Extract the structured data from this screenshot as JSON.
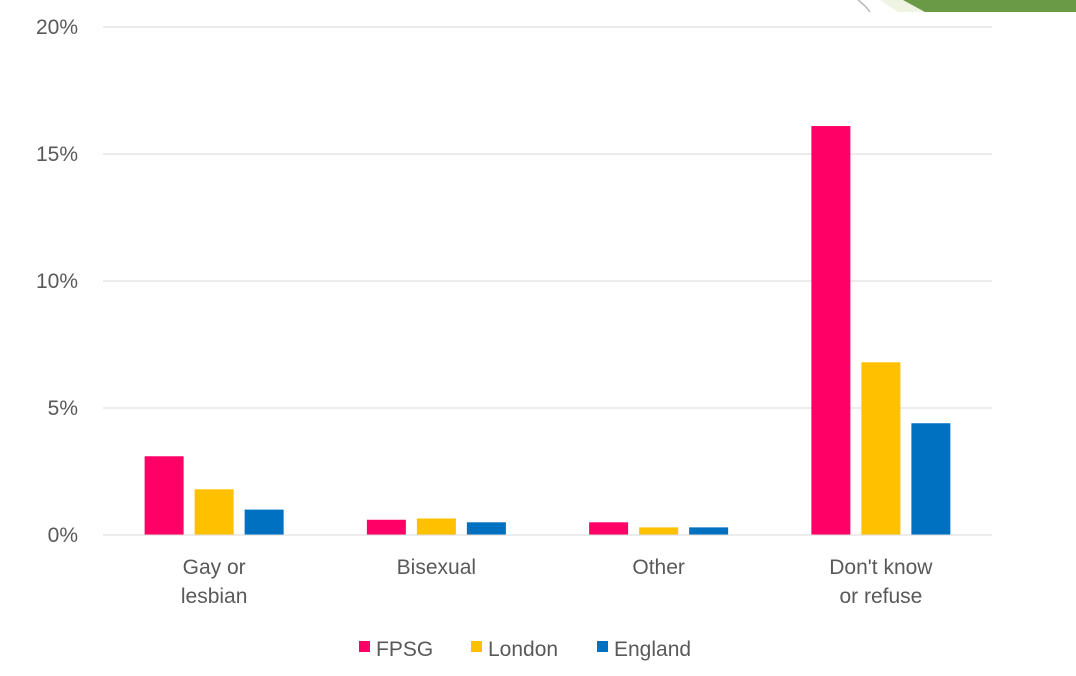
{
  "chart_data": {
    "type": "bar",
    "categories": [
      [
        "Gay or",
        "lesbian"
      ],
      [
        "Bisexual"
      ],
      [
        "Other"
      ],
      [
        "Don't know",
        "or refuse"
      ]
    ],
    "series": [
      {
        "name": "FPSG",
        "color": "#ff0066",
        "values": [
          3.1,
          0.6,
          0.5,
          16.1
        ]
      },
      {
        "name": "London",
        "color": "#ffc000",
        "values": [
          1.8,
          0.65,
          0.3,
          6.8
        ]
      },
      {
        "name": "England",
        "color": "#0070c0",
        "values": [
          1.0,
          0.5,
          0.3,
          4.4
        ]
      }
    ],
    "yticks": [
      "0%",
      "5%",
      "10%",
      "15%",
      "20%"
    ],
    "ytick_values": [
      0,
      5,
      10,
      15,
      20
    ],
    "ylim": [
      0,
      20
    ],
    "grid": true,
    "legend_position": "bottom",
    "title": "",
    "xlabel": "",
    "ylabel": ""
  }
}
